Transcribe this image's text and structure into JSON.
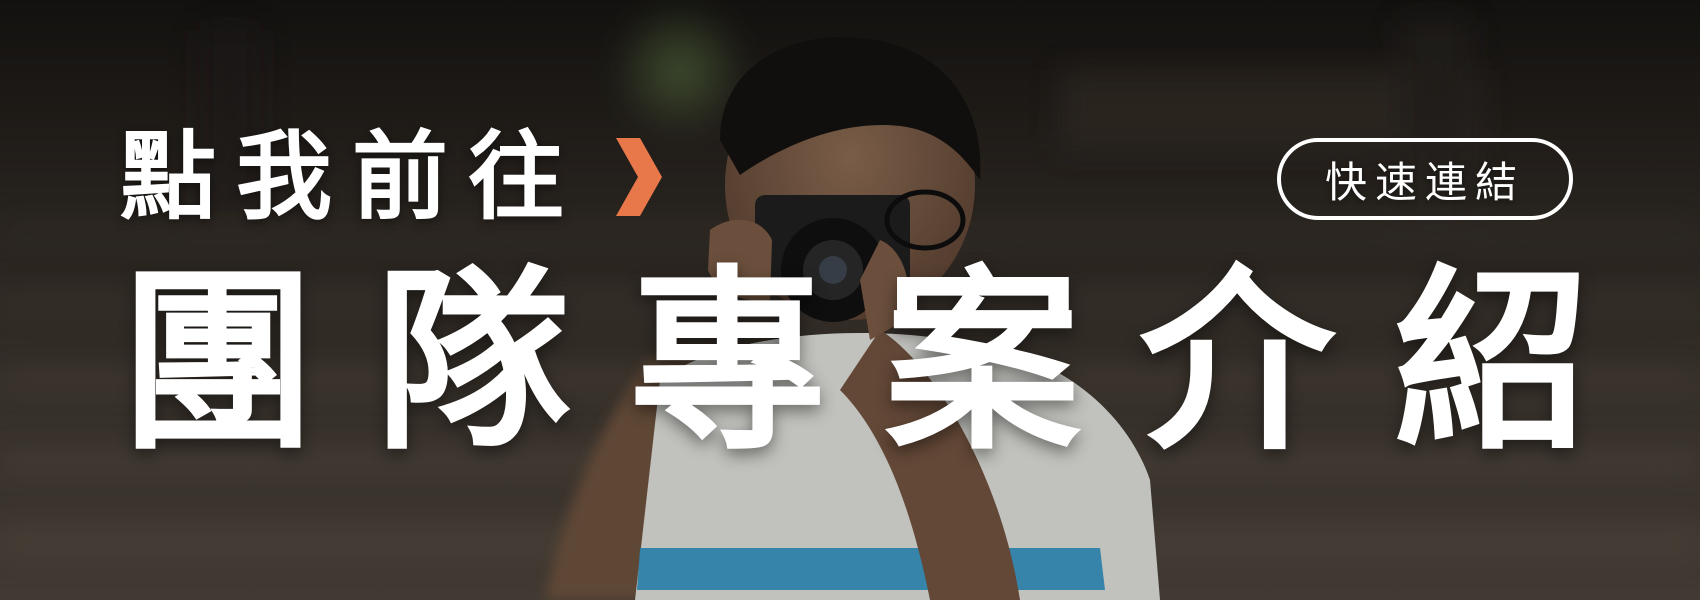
{
  "banner": {
    "cta_text": "點我前往",
    "arrow_icon": "chevron-right-icon",
    "quick_link_label": "快速連結",
    "title_chars": [
      "團",
      "隊",
      "專",
      "案",
      "介",
      "紹"
    ],
    "colors": {
      "accent": "#e8774a",
      "text": "#ffffff",
      "shirt_stripe": "#2d8fc0"
    }
  }
}
